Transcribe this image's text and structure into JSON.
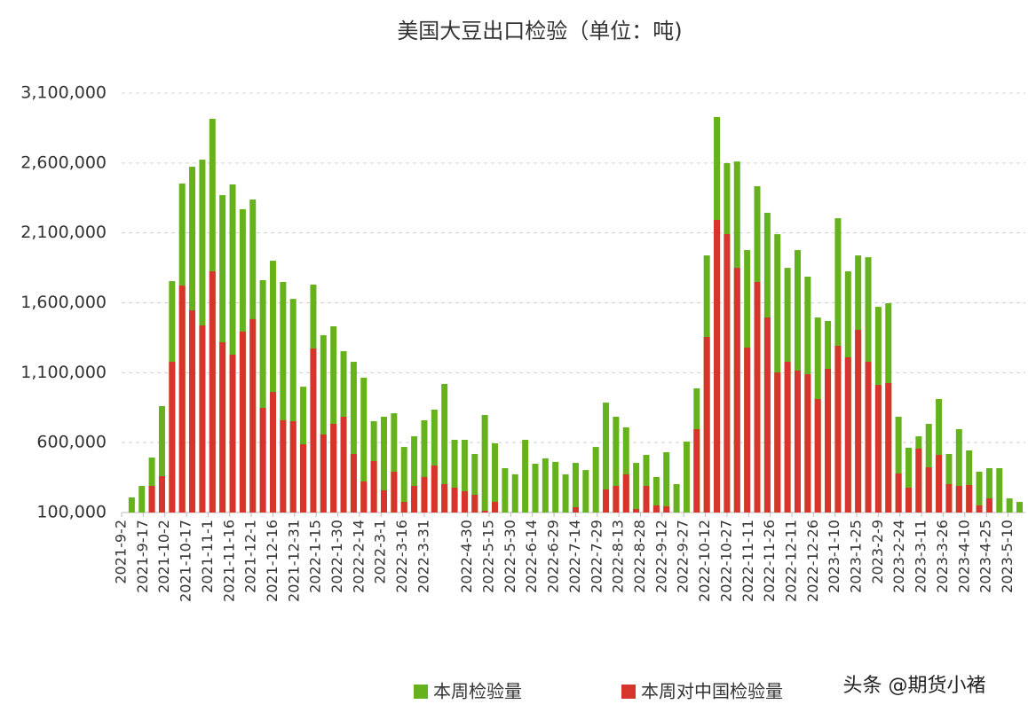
{
  "chart_data": {
    "type": "bar",
    "title": "美国大豆出口检验（单位：吨)",
    "watermark": "头条 @期货小褚",
    "x": [
      "2021-9-9",
      "2021-9-16",
      "2021-9-23",
      "2021-9-30",
      "2021-10-7",
      "2021-10-14",
      "2021-10-21",
      "2021-10-28",
      "2021-11-4",
      "2021-11-11",
      "2021-11-18",
      "2021-11-25",
      "2021-12-2",
      "2021-12-9",
      "2021-12-16",
      "2021-12-23",
      "2021-12-30",
      "2022-1-6",
      "2022-1-13",
      "2022-1-20",
      "2022-1-27",
      "2022-2-3",
      "2022-2-10",
      "2022-2-17",
      "2022-2-24",
      "2022-3-3",
      "2022-3-10",
      "2022-3-17",
      "2022-3-24",
      "2022-3-31",
      "2022-4-7",
      "2022-4-14",
      "2022-4-21",
      "2022-4-28",
      "2022-5-5",
      "2022-5-12",
      "2022-5-19",
      "2022-5-26",
      "2022-6-2",
      "2022-6-9",
      "2022-6-16",
      "2022-6-23",
      "2022-6-30",
      "2022-7-7",
      "2022-7-14",
      "2022-7-21",
      "2022-7-28",
      "2022-8-4",
      "2022-8-11",
      "2022-8-18",
      "2022-8-25",
      "2022-9-1",
      "2022-9-8",
      "2022-9-15",
      "2022-9-22",
      "2022-9-29",
      "2022-10-6",
      "2022-10-13",
      "2022-10-20",
      "2022-10-27",
      "2022-11-3",
      "2022-11-10",
      "2022-11-17",
      "2022-11-24",
      "2022-12-1",
      "2022-12-8",
      "2022-12-15",
      "2022-12-22",
      "2022-12-29",
      "2023-1-5",
      "2023-1-12",
      "2023-1-19",
      "2023-1-26",
      "2023-2-2",
      "2023-2-9",
      "2023-2-16",
      "2023-2-23",
      "2023-3-2",
      "2023-3-9",
      "2023-3-16",
      "2023-3-23",
      "2023-3-30",
      "2023-4-6",
      "2023-4-13",
      "2023-4-20",
      "2023-4-27",
      "2023-5-4",
      "2023-5-11",
      "2023-5-18"
    ],
    "series": [
      {
        "name": "本周检验量",
        "color": "#66b21d",
        "values": [
          208000,
          290000,
          493000,
          861000,
          1755000,
          2453000,
          2573000,
          2624000,
          2916000,
          2370000,
          2447000,
          2269000,
          2339000,
          1762000,
          1901000,
          1749000,
          1628000,
          1000000,
          1730000,
          1368000,
          1432000,
          1254000,
          1178000,
          1064000,
          753000,
          785000,
          810000,
          569000,
          645000,
          760000,
          836000,
          1020000,
          620000,
          620000,
          519000,
          798000,
          595000,
          417000,
          373000,
          620000,
          449000,
          487000,
          462000,
          373000,
          455000,
          404000,
          569000,
          886000,
          785000,
          709000,
          455000,
          512000,
          354000,
          531000,
          303000,
          607000,
          988000,
          1939000,
          2929000,
          2599000,
          2611000,
          1977000,
          2434000,
          2244000,
          2091000,
          1850000,
          1977000,
          1787000,
          1495000,
          1470000,
          2205000,
          1825000,
          1939000,
          1926000,
          1571000,
          1597000,
          785000,
          563000,
          645000,
          734000,
          912000,
          519000,
          696000,
          544000,
          392000,
          417000,
          417000,
          201000,
          176000
        ]
      },
      {
        "name": "本周对中国检验量",
        "color": "#d7342b",
        "values": [
          0,
          0,
          290000,
          360000,
          1178000,
          1723000,
          1546000,
          1438000,
          1825000,
          1318000,
          1229000,
          1394000,
          1483000,
          848000,
          962000,
          760000,
          753000,
          588000,
          1273000,
          658000,
          734000,
          785000,
          519000,
          322000,
          468000,
          259000,
          392000,
          176000,
          290000,
          354000,
          436000,
          303000,
          278000,
          252000,
          227000,
          113000,
          176000,
          0,
          0,
          0,
          0,
          0,
          0,
          0,
          138000,
          0,
          0,
          265000,
          290000,
          373000,
          125000,
          290000,
          151000,
          144000,
          0,
          0,
          696000,
          1356000,
          2193000,
          2091000,
          1850000,
          1280000,
          1749000,
          1495000,
          1102000,
          1178000,
          1115000,
          1089000,
          912000,
          1127000,
          1292000,
          1210000,
          1406000,
          1178000,
          1013000,
          1026000,
          379000,
          278000,
          557000,
          423000,
          512000,
          303000,
          290000,
          297000,
          151000,
          201000,
          0,
          0,
          0
        ]
      }
    ],
    "xlim": [
      "2021-9-2",
      "2023-5-22"
    ],
    "xticks": [
      "2021-9-2",
      "2021-9-17",
      "2021-10-2",
      "2021-10-17",
      "2021-11-1",
      "2021-11-16",
      "2021-12-1",
      "2021-12-16",
      "2021-12-31",
      "2022-1-15",
      "2022-1-30",
      "2022-2-14",
      "2022-3-1",
      "2022-3-16",
      "2022-3-31",
      "2022-4-30",
      "2022-5-15",
      "2022-5-30",
      "2022-6-14",
      "2022-6-29",
      "2022-7-14",
      "2022-7-29",
      "2022-8-13",
      "2022-8-28",
      "2022-9-12",
      "2022-9-27",
      "2022-10-12",
      "2022-10-27",
      "2022-11-11",
      "2022-11-26",
      "2022-12-11",
      "2022-12-26",
      "2023-1-10",
      "2023-1-25",
      "2023-2-9",
      "2023-2-24",
      "2023-3-11",
      "2023-3-26",
      "2023-4-10",
      "2023-4-25",
      "2023-5-10"
    ],
    "ylim": [
      100000,
      3100000
    ],
    "yticks": [
      {
        "value": 100000,
        "label": "100,000"
      },
      {
        "value": 600000,
        "label": "600,000"
      },
      {
        "value": 1100000,
        "label": "1,100,000"
      },
      {
        "value": 1600000,
        "label": "1,600,000"
      },
      {
        "value": 2100000,
        "label": "2,100,000"
      },
      {
        "value": 2600000,
        "label": "2,600,000"
      },
      {
        "value": 3100000,
        "label": "3,100,000"
      }
    ],
    "grid": true,
    "legend": "bottom"
  }
}
